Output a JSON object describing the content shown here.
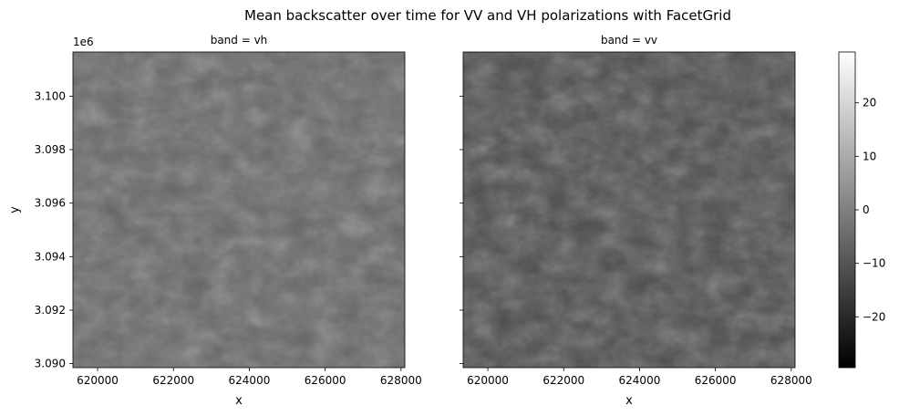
{
  "chart_data": {
    "type": "heatmap",
    "title": "Mean backscatter over time for VV and VH polarizations with FacetGrid",
    "panels": [
      {
        "label": "band = vh",
        "band": "vh",
        "mean_level": -6
      },
      {
        "label": "band = vv",
        "band": "vv",
        "mean_level": -12
      }
    ],
    "x_axis": {
      "label": "x",
      "range": [
        619350,
        628100
      ],
      "ticks": [
        620000,
        622000,
        624000,
        626000,
        628000
      ],
      "tick_labels": [
        "620000",
        "622000",
        "624000",
        "626000",
        "628000"
      ]
    },
    "y_axis": {
      "label": "y",
      "offset_text": "1e6",
      "range": [
        3.08985,
        3.10165
      ],
      "ticks": [
        3.09,
        3.092,
        3.094,
        3.096,
        3.098,
        3.1
      ],
      "tick_labels": [
        "3.090",
        "3.092",
        "3.094",
        "3.096",
        "3.098",
        "3.100"
      ]
    },
    "colorbar": {
      "range": [
        -29.5,
        29.5
      ],
      "colormap": "gray",
      "ticks": [
        -20,
        -10,
        0,
        10,
        20
      ],
      "tick_labels": [
        "−20",
        "−10",
        "0",
        "10",
        "20"
      ]
    }
  }
}
